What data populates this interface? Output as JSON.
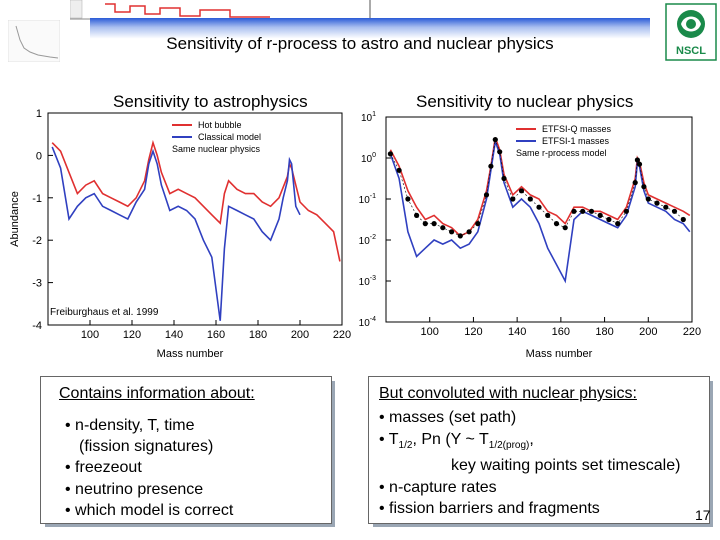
{
  "header": {
    "title": "Sensitivity of r-process to astro and nuclear physics",
    "logo_text": "NSCL"
  },
  "left_panel": {
    "heading": "Sensitivity to astrophysics",
    "citation": "Freiburghaus et al. 1999"
  },
  "right_panel": {
    "heading": "Sensitivity to nuclear physics"
  },
  "chart_data": [
    {
      "type": "line",
      "title": "",
      "xlabel": "Mass number",
      "ylabel": "Abundance",
      "xlim": [
        80,
        220
      ],
      "ylim": [
        -4,
        1
      ],
      "xticks": [
        "100",
        "120",
        "140",
        "160",
        "180",
        "200",
        "220"
      ],
      "yticks": [
        "1",
        "0",
        "-1",
        "-2",
        "-3",
        "-4"
      ],
      "legend": [
        "Hot bubble",
        "Classical model"
      ],
      "legend_note": "Same nuclear physics",
      "legend_position": "top-right",
      "colors": {
        "Hot bubble": "#e03030",
        "Classical model": "#3040c0"
      },
      "series": [
        {
          "name": "Hot bubble",
          "x": [
            82,
            86,
            90,
            94,
            98,
            102,
            106,
            110,
            114,
            118,
            122,
            126,
            128,
            130,
            132,
            134,
            138,
            142,
            146,
            150,
            154,
            158,
            162,
            164,
            166,
            170,
            174,
            178,
            182,
            186,
            190,
            194,
            195,
            196,
            198,
            200,
            204,
            208,
            212,
            216,
            219
          ],
          "y": [
            0.3,
            0.1,
            -0.4,
            -0.9,
            -0.7,
            -0.6,
            -0.9,
            -1.0,
            -1.1,
            -1.2,
            -1.0,
            -0.6,
            -0.1,
            0.3,
            0.0,
            -0.4,
            -0.9,
            -0.8,
            -0.9,
            -1.0,
            -1.2,
            -1.4,
            -1.6,
            -0.9,
            -0.6,
            -0.8,
            -0.9,
            -0.9,
            -1.1,
            -1.2,
            -1.0,
            -0.5,
            -0.2,
            -0.3,
            -0.7,
            -1.1,
            -1.3,
            -1.4,
            -1.6,
            -1.8,
            -2.5
          ]
        },
        {
          "name": "Classical model",
          "x": [
            82,
            86,
            90,
            94,
            98,
            102,
            106,
            110,
            114,
            118,
            122,
            126,
            128,
            130,
            132,
            134,
            138,
            142,
            146,
            150,
            154,
            158,
            162,
            164,
            166,
            170,
            174,
            178,
            182,
            186,
            190,
            192,
            194,
            195,
            196,
            198,
            200
          ],
          "y": [
            0.2,
            -0.3,
            -1.5,
            -1.2,
            -1.0,
            -0.9,
            -1.2,
            -1.3,
            -1.4,
            -1.5,
            -1.1,
            -0.8,
            -0.2,
            0.1,
            -0.2,
            -0.7,
            -1.3,
            -1.2,
            -1.3,
            -1.5,
            -2.0,
            -2.4,
            -3.9,
            -2.2,
            -1.2,
            -1.3,
            -1.4,
            -1.5,
            -1.8,
            -2.0,
            -1.5,
            -1.0,
            -0.6,
            -0.1,
            -0.2,
            -1.2,
            -1.4
          ]
        }
      ]
    },
    {
      "type": "line",
      "title": "",
      "xlabel": "Mass number",
      "ylabel": "",
      "log_scale_y": true,
      "xlim": [
        80,
        220
      ],
      "ylim": [
        0.0001,
        1
      ],
      "xticks": [
        "100",
        "120",
        "140",
        "160",
        "180",
        "200",
        "220"
      ],
      "yticks": [
        "10^1",
        "10^0",
        "10^-1",
        "10^-2",
        "10^-3",
        "10^-4"
      ],
      "legend": [
        "ETFSI-Q masses",
        "ETFSI-1 masses"
      ],
      "legend_note": "Same r-process model",
      "legend_position": "top-right",
      "colors": {
        "ETFSI-Q masses": "#e03030",
        "ETFSI-1 masses": "#3040c0",
        "observed": "#000000"
      },
      "series": [
        {
          "name": "ETFSI-Q masses",
          "x": [
            82,
            86,
            90,
            94,
            98,
            102,
            106,
            110,
            114,
            118,
            122,
            126,
            128,
            130,
            132,
            134,
            138,
            142,
            146,
            150,
            154,
            158,
            162,
            166,
            170,
            174,
            178,
            182,
            186,
            190,
            194,
            195,
            196,
            198,
            200,
            204,
            208,
            212,
            216,
            219
          ],
          "y": [
            0.2,
            -0.2,
            -0.8,
            -1.2,
            -1.5,
            -1.4,
            -1.6,
            -1.7,
            -1.9,
            -1.8,
            -1.5,
            -0.8,
            -0.2,
            0.5,
            0.2,
            -0.4,
            -0.9,
            -0.7,
            -0.9,
            -1.0,
            -1.3,
            -1.4,
            -1.6,
            -1.2,
            -1.2,
            -1.3,
            -1.3,
            -1.4,
            -1.5,
            -1.2,
            -0.5,
            0.0,
            -0.1,
            -0.6,
            -0.9,
            -1.0,
            -1.1,
            -1.2,
            -1.3,
            -1.4
          ]
        },
        {
          "name": "ETFSI-1 masses",
          "x": [
            82,
            86,
            90,
            94,
            98,
            102,
            106,
            110,
            114,
            118,
            122,
            126,
            128,
            130,
            132,
            134,
            138,
            142,
            146,
            150,
            154,
            158,
            162,
            166,
            170,
            174,
            178,
            182,
            186,
            190,
            194,
            195,
            196,
            198,
            200,
            204,
            208,
            212,
            216,
            219
          ],
          "y": [
            0.1,
            -0.5,
            -1.8,
            -2.4,
            -2.2,
            -2.0,
            -2.1,
            -2.0,
            -2.2,
            -2.1,
            -1.8,
            -1.0,
            -0.3,
            0.4,
            0.1,
            -0.6,
            -1.2,
            -1.0,
            -1.2,
            -1.6,
            -2.2,
            -2.6,
            -3.0,
            -1.5,
            -1.3,
            -1.4,
            -1.5,
            -1.6,
            -1.7,
            -1.4,
            -0.7,
            -0.1,
            -0.2,
            -0.8,
            -1.1,
            -1.2,
            -1.3,
            -1.5,
            -1.6,
            -1.8
          ]
        },
        {
          "name": "",
          "x": [
            82,
            86,
            90,
            94,
            98,
            102,
            106,
            110,
            114,
            118,
            122,
            126,
            128,
            130,
            132,
            134,
            138,
            142,
            146,
            150,
            154,
            158,
            162,
            166,
            170,
            174,
            178,
            182,
            186,
            190,
            194,
            195,
            196,
            198,
            200,
            204,
            208,
            212,
            216
          ],
          "y": [
            0.1,
            -0.3,
            -1.0,
            -1.4,
            -1.6,
            -1.6,
            -1.7,
            -1.8,
            -1.9,
            -1.8,
            -1.6,
            -0.9,
            -0.2,
            0.45,
            0.15,
            -0.5,
            -1.0,
            -0.8,
            -1.0,
            -1.2,
            -1.4,
            -1.6,
            -1.7,
            -1.3,
            -1.3,
            -1.3,
            -1.4,
            -1.5,
            -1.6,
            -1.3,
            -0.6,
            -0.05,
            -0.15,
            -0.7,
            -1.0,
            -1.1,
            -1.2,
            -1.3,
            -1.5
          ]
        }
      ]
    }
  ],
  "left_box": {
    "title": "Contains information about:",
    "items": [
      "• n-density, T, time",
      "(fission signatures)",
      "• freezeout",
      "• neutrino presence",
      "• which model is correct"
    ]
  },
  "right_box": {
    "title": "But convoluted with nuclear physics:",
    "line1": "• masses (set path)",
    "line2_a": "• T",
    "line2_sub1": "1/2",
    "line2_b": ", Pn (Y ~ T",
    "line2_sub2": "1/2(prog)",
    "line2_c": ",",
    "line3": "key waiting points set timescale)",
    "line4": "• n-capture rates",
    "line5": "• fission barriers and fragments"
  },
  "page_number": "17"
}
